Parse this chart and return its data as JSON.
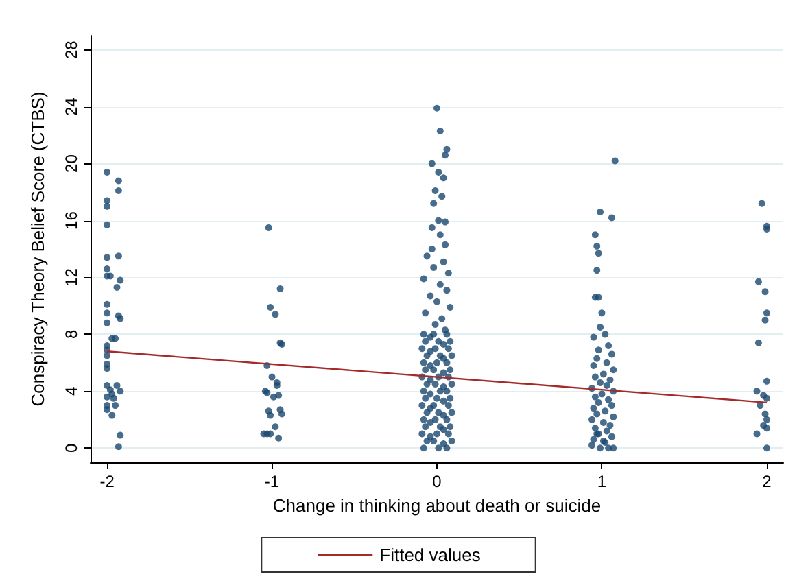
{
  "chart_data": {
    "type": "scatter",
    "xlabel": "Change in thinking about death or suicide",
    "ylabel": "Conspiracy Theory Belief Score (CTBS)",
    "xlim": [
      -2.1,
      2.1
    ],
    "xticks": [
      -2,
      -1,
      0,
      1,
      2
    ],
    "ylim": [
      -1,
      29
    ],
    "yticks": [
      0,
      4,
      8,
      12,
      16,
      20,
      24,
      28
    ],
    "grid": "y",
    "legend": "bottom",
    "marker": "circle",
    "series": [
      {
        "color": "#1a476f",
        "x": [
          -2,
          -1.93,
          -1.93,
          -2,
          -2,
          -2,
          -2,
          -1.93,
          -2,
          -2,
          -1.98,
          -1.92,
          -1.94,
          -2,
          -2,
          -1.93,
          -1.92,
          -2,
          -1.97,
          -1.95,
          -2,
          -2,
          -2,
          -2,
          -2,
          -2,
          -1.98,
          -1.94,
          -1.92,
          -2,
          -1.97,
          -1.96,
          -2,
          -1.95,
          -2,
          -1.97,
          -1.92,
          -1.93,
          -1.02,
          -1.01,
          -0.98,
          -0.95,
          -0.95,
          -0.94,
          -1.03,
          -1,
          -0.97,
          -0.97,
          -1.04,
          -1.03,
          -0.99,
          -0.96,
          -1.02,
          -1.01,
          -0.95,
          -0.94,
          -0.98,
          -1.05,
          -1.03,
          -1.01,
          -0.96,
          0,
          0.02,
          0.06,
          0.05,
          -0.03,
          0.01,
          0.04,
          -0.01,
          0.03,
          -0.02,
          0.01,
          -0.03,
          0.05,
          0.02,
          0.05,
          -0.03,
          -0.06,
          0.04,
          -0.02,
          0.07,
          -0.08,
          0.02,
          0.06,
          -0.04,
          0,
          0.08,
          -0.07,
          0.03,
          -0.01,
          0.05,
          -0.08,
          -0.07,
          -0.09,
          -0.06,
          -0.08,
          -0.07,
          -0.09,
          -0.06,
          -0.08,
          -0.07,
          -0.09,
          -0.06,
          -0.08,
          -0.07,
          -0.09,
          -0.06,
          -0.08,
          -0.02,
          0.01,
          -0.01,
          0.02,
          0,
          -0.02,
          0.01,
          -0.01,
          0.02,
          0,
          -0.02,
          0.01,
          -0.01,
          0.02,
          0,
          -0.02,
          0.01,
          0.06,
          0.08,
          0.07,
          0.09,
          0.06,
          0.08,
          0.07,
          0.09,
          0.06,
          0.08,
          0.07,
          0.09,
          0.06,
          0.08,
          0.07,
          0.09,
          0.06,
          -0.04,
          0.04,
          -0.04,
          0.04,
          -0.04,
          0.04,
          -0.04,
          0.04,
          -0.04,
          0.04,
          -0.04,
          0.04,
          -0.04,
          0.04,
          -0.04,
          0.04,
          1.08,
          0.99,
          1.06,
          0.96,
          0.97,
          0.98,
          0.97,
          0.96,
          0.98,
          1,
          0.99,
          1.02,
          0.95,
          1.04,
          0.98,
          1.06,
          0.97,
          1.03,
          0.95,
          1.07,
          1.01,
          0.96,
          1.05,
          0.99,
          1.03,
          0.94,
          1.07,
          1,
          0.96,
          1.04,
          0.98,
          1.06,
          0.95,
          1.02,
          0.97,
          1.07,
          0.94,
          1.01,
          1.05,
          0.96,
          1.03,
          0.98,
          1.06,
          0.95,
          1.02,
          0.94,
          1.07,
          0.99,
          1.04,
          0.97,
          1.01,
          1.97,
          2,
          2,
          1.95,
          1.99,
          2,
          1.99,
          1.95,
          2,
          1.94,
          1.98,
          2,
          1.96,
          1.99,
          2,
          1.98,
          2,
          1.94,
          2
        ],
        "values": [
          19.4,
          18.8,
          18.1,
          17.4,
          17,
          15.7,
          13.4,
          13.5,
          12.6,
          12.1,
          12.1,
          11.8,
          11.3,
          10.1,
          9.5,
          9.3,
          9.1,
          8.8,
          7.7,
          7.7,
          7.2,
          6.9,
          6.5,
          5.9,
          5.6,
          4.4,
          4.1,
          4.4,
          4,
          3.6,
          3.8,
          3.5,
          3,
          3,
          2.7,
          2.3,
          0.9,
          0.1,
          15.5,
          9.9,
          9.4,
          11.2,
          7.4,
          7.3,
          5.8,
          5,
          4.6,
          4.4,
          4,
          3.9,
          3.6,
          3.7,
          2.6,
          2.3,
          2.7,
          2.4,
          1.5,
          1,
          1,
          1,
          0.7,
          23.9,
          22.3,
          21,
          20.6,
          20,
          19.4,
          19,
          18.1,
          17.7,
          17.2,
          16,
          15.5,
          15.9,
          15,
          14.3,
          14,
          13.5,
          13.1,
          12.7,
          12.3,
          11.9,
          11.5,
          11.1,
          10.7,
          10.3,
          9.9,
          9.5,
          9.1,
          8.7,
          8.3,
          8,
          7.5,
          7,
          6.5,
          6,
          5.5,
          5,
          4.5,
          4,
          3.5,
          3,
          2.5,
          2,
          1.5,
          1,
          0.5,
          0,
          8,
          7.5,
          7,
          6.5,
          6,
          5.5,
          5,
          4.5,
          4,
          3.5,
          3,
          2.5,
          2,
          1.5,
          1,
          0.5,
          0,
          8,
          7.5,
          7,
          6.5,
          6,
          5.5,
          5,
          4.5,
          4,
          3.5,
          3,
          2.5,
          2,
          1.5,
          1,
          0.5,
          0,
          7.8,
          7.3,
          6.8,
          6.3,
          5.8,
          5.3,
          4.8,
          4.3,
          3.8,
          3.3,
          2.8,
          2.3,
          1.8,
          1.3,
          0.8,
          0.3,
          20.2,
          16.6,
          16.2,
          15,
          14.2,
          13.7,
          12.5,
          10.6,
          10.6,
          9.5,
          8.5,
          8,
          7.8,
          7.2,
          6.9,
          6.6,
          6.3,
          6,
          5.8,
          5.5,
          5.2,
          5,
          4.8,
          4.6,
          4.4,
          4.2,
          4,
          3.8,
          3.6,
          3.4,
          3.2,
          3,
          2.8,
          2.6,
          2.4,
          2.2,
          2,
          1.8,
          1.6,
          1.4,
          1.2,
          1,
          0.8,
          0.6,
          0.4,
          0.2,
          0,
          0,
          0,
          1,
          0.5,
          17.2,
          15.6,
          15.4,
          11.7,
          11,
          9.5,
          9,
          7.4,
          4.7,
          4,
          3.7,
          3.5,
          3,
          2.4,
          2,
          1.6,
          1.4,
          1,
          0
        ]
      },
      {
        "type": "line",
        "name": "Fitted values",
        "color": "#a52a2a",
        "marker": "none",
        "x": [
          -2,
          2
        ],
        "values": [
          6.8,
          3.2
        ]
      }
    ]
  }
}
